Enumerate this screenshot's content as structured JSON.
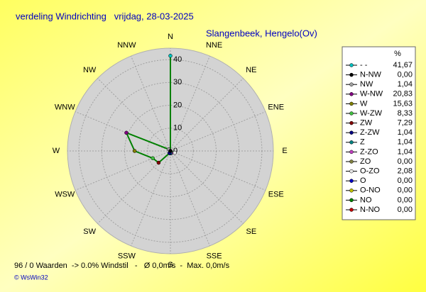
{
  "chart_data": {
    "type": "radar",
    "title": "verdeling Windrichting   vrijdag, 28-03-2025",
    "subtitle": "Slangenbeek, Hengelo(Ov)",
    "categories": [
      "N",
      "NNE",
      "NE",
      "ENE",
      "E",
      "ESE",
      "SE",
      "SSE",
      "S",
      "SSW",
      "SW",
      "WSW",
      "W",
      "WNW",
      "NW",
      "NNW"
    ],
    "series": [
      {
        "color": "#008000",
        "values": [
          41.67,
          0,
          0,
          0,
          0,
          2.08,
          0,
          1.04,
          1.04,
          1.04,
          7.29,
          8.33,
          15.63,
          20.83,
          1.04,
          0
        ],
        "value_labels": [
          "41,67",
          "0,00",
          "0,00",
          "0,00",
          "0,00",
          "2,08",
          "0,00",
          "1,04",
          "1,04",
          "1,04",
          "7,29",
          "8,33",
          "15,63",
          "20,83",
          "1,04",
          "0,00"
        ]
      }
    ],
    "legend": {
      "header": "%",
      "names": [
        "- -",
        "N-NO",
        "NO",
        "O-NO",
        "O",
        "O-ZO",
        "ZO",
        "Z-ZO",
        "Z",
        "Z-ZW",
        "ZW",
        "W-ZW",
        "W",
        "W-NW",
        "NW",
        "N-NW"
      ],
      "colors": [
        "#00c0c0",
        "#c00000",
        "#008000",
        "#c0c000",
        "#0000c0",
        "#e8e8e8",
        "#808040",
        "#c040c0",
        "#008080",
        "#000080",
        "#800000",
        "#40c040",
        "#808000",
        "#800080",
        "#a0a0a0",
        "#000000"
      ]
    },
    "rlim": [
      0,
      45
    ],
    "rticks": [
      0,
      10,
      20,
      30,
      40
    ],
    "grid": true,
    "footer": "96 / 0 Waarden  -> 0.0% Windstil   -   Ø 0,0m/s  -  Max. 0,0m/s",
    "copyright": "© WsWin32"
  }
}
